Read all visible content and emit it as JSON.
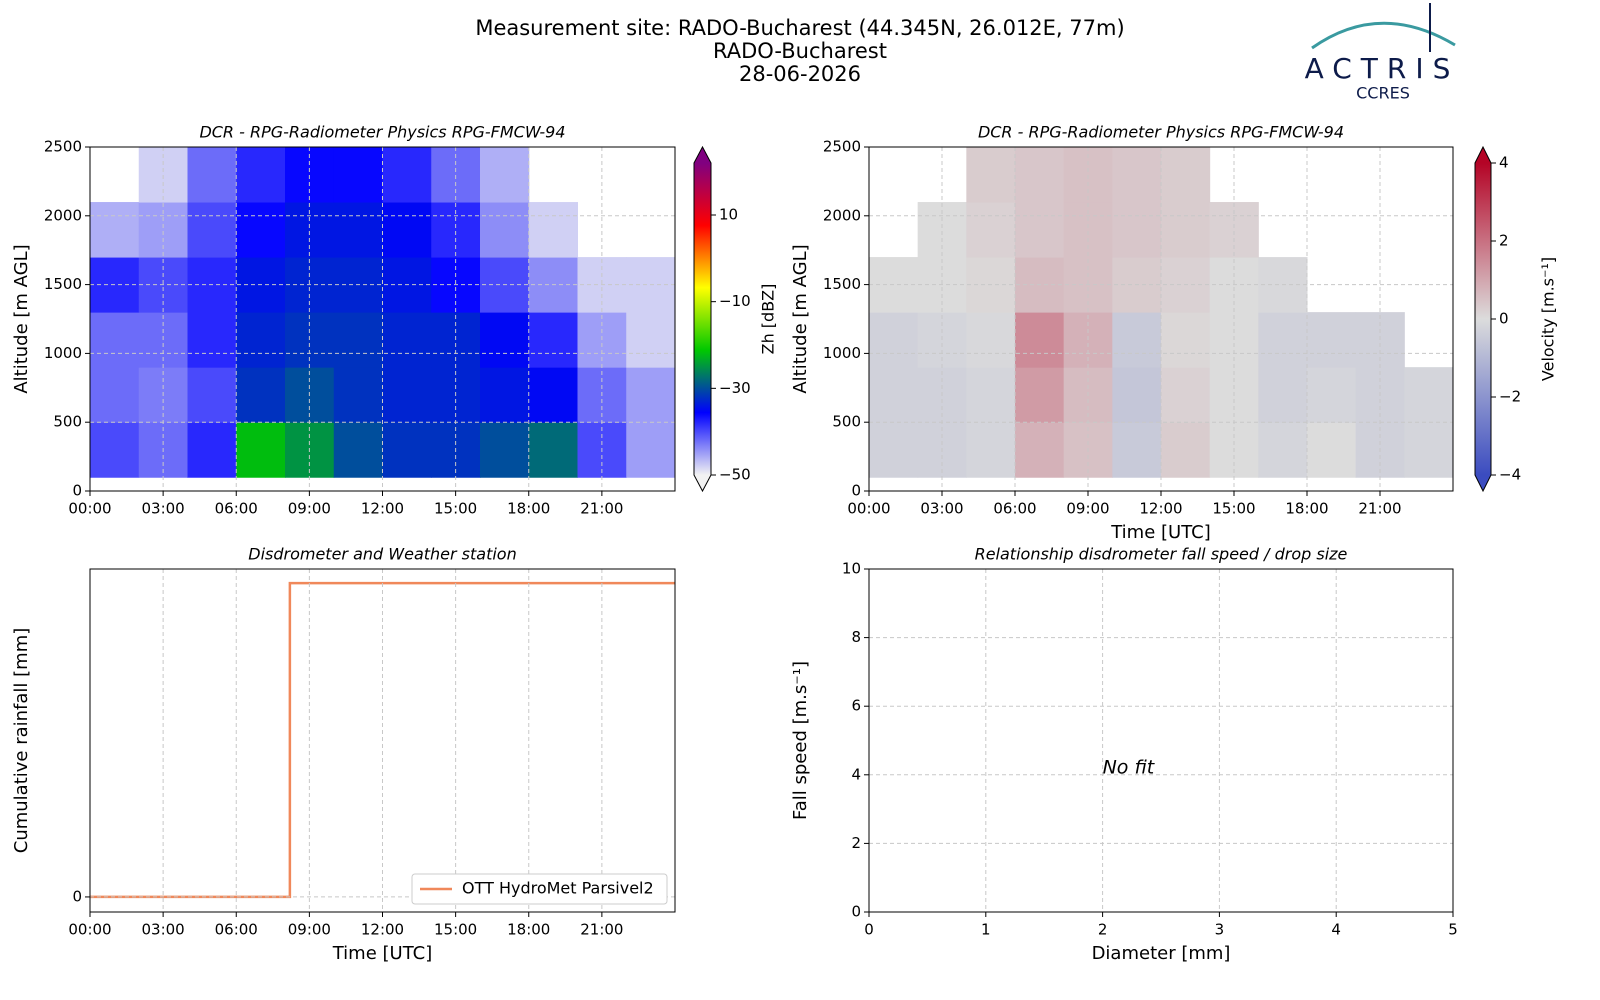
{
  "header": {
    "title_lines": [
      "Measurement site: RADO-Bucharest (44.345N, 26.012E, 77m)",
      "RADO-Bucharest",
      "28-06-2026"
    ],
    "logo": "ACTRIS",
    "logo_sub": "CCRES"
  },
  "chart_data": [
    {
      "type": "heatmap",
      "title": "DCR - RPG-Radiometer Physics RPG-FMCW-94",
      "ylabel": "Altitude [m AGL]",
      "x_edges": [
        0,
        2,
        4,
        6,
        8,
        10,
        12,
        14,
        16,
        18,
        20,
        22,
        24
      ],
      "y_edges": [
        100,
        500,
        900,
        1300,
        1700,
        2100,
        2500
      ],
      "values": [
        [
          -40,
          -42,
          -38,
          -22,
          -25,
          -30,
          -32,
          -32,
          -30,
          -28,
          -40,
          -45
        ],
        [
          -42,
          -43,
          -40,
          -32,
          -30,
          -32,
          -33,
          -33,
          -34,
          -35,
          -42,
          -45
        ],
        [
          -42,
          -42,
          -38,
          -33,
          -32,
          -32,
          -33,
          -33,
          -35,
          -38,
          -45,
          -48
        ],
        [
          -38,
          -40,
          -38,
          -34,
          -33,
          -33,
          -34,
          -36,
          -40,
          -44,
          -48,
          -48
        ],
        [
          -46,
          -45,
          -40,
          -36,
          -34,
          -34,
          -35,
          -38,
          -44,
          -48,
          null,
          null
        ],
        [
          null,
          -48,
          -42,
          -38,
          -36,
          -36,
          -38,
          -42,
          -46,
          null,
          null,
          null
        ]
      ],
      "xlim": [
        0,
        24
      ],
      "ylim": [
        0,
        2500
      ],
      "xticks": [
        {
          "value": 0,
          "label": "00:00"
        },
        {
          "value": 3,
          "label": "03:00"
        },
        {
          "value": 6,
          "label": "06:00"
        },
        {
          "value": 9,
          "label": "09:00"
        },
        {
          "value": 12,
          "label": "12:00"
        },
        {
          "value": 15,
          "label": "15:00"
        },
        {
          "value": 18,
          "label": "18:00"
        },
        {
          "value": 21,
          "label": "21:00"
        }
      ],
      "yticks": [
        0,
        500,
        1000,
        1500,
        2000,
        2500
      ],
      "grid": true,
      "clim": [
        -50,
        22
      ],
      "cticks": [
        {
          "value": -50,
          "label": "−50"
        },
        {
          "value": -30,
          "label": "−30"
        },
        {
          "value": -10,
          "label": "−10"
        },
        10
      ],
      "clabel": "Zh [dBZ]",
      "colors": [
        "#f2f2f2",
        "#0000ff",
        "#00c800",
        "#ffff00",
        "#ff0000",
        "#800080"
      ],
      "extend": "both"
    },
    {
      "type": "heatmap",
      "title": "DCR - RPG-Radiometer Physics RPG-FMCW-94",
      "ylabel": "Altitude [m AGL]",
      "xlabel": "Time [UTC]",
      "x_edges": [
        0,
        2,
        4,
        6,
        8,
        10,
        12,
        14,
        16,
        18,
        20,
        22,
        24
      ],
      "y_edges": [
        100,
        500,
        900,
        1300,
        1700,
        2100,
        2500
      ],
      "values": [
        [
          -0.3,
          -0.3,
          -0.2,
          0.8,
          0.5,
          -0.5,
          0.3,
          0,
          -0.2,
          0,
          -0.3,
          -0.2
        ],
        [
          -0.3,
          -0.3,
          -0.2,
          1.2,
          0.6,
          -0.6,
          0.2,
          0,
          -0.3,
          -0.2,
          -0.3,
          -0.2
        ],
        [
          -0.3,
          -0.2,
          -0.1,
          1.5,
          0.8,
          -0.5,
          0.1,
          0,
          -0.3,
          -0.3,
          -0.3,
          null
        ],
        [
          0,
          0,
          0.1,
          0.6,
          0.5,
          0.3,
          0.2,
          0,
          -0.1,
          null,
          null,
          null
        ],
        [
          null,
          0,
          0.2,
          0.4,
          0.5,
          0.4,
          0.3,
          0.2,
          null,
          null,
          null,
          null
        ],
        [
          null,
          null,
          0.3,
          0.4,
          0.5,
          0.4,
          0.3,
          null,
          null,
          null,
          null,
          null
        ]
      ],
      "xlim": [
        0,
        24
      ],
      "ylim": [
        0,
        2500
      ],
      "xticks": [
        {
          "value": 0,
          "label": "00:00"
        },
        {
          "value": 3,
          "label": "03:00"
        },
        {
          "value": 6,
          "label": "06:00"
        },
        {
          "value": 9,
          "label": "09:00"
        },
        {
          "value": 12,
          "label": "12:00"
        },
        {
          "value": 15,
          "label": "15:00"
        },
        {
          "value": 18,
          "label": "18:00"
        },
        {
          "value": 21,
          "label": "21:00"
        }
      ],
      "yticks": [
        0,
        500,
        1000,
        1500,
        2000,
        2500
      ],
      "grid": true,
      "clim": [
        -4,
        4
      ],
      "cticks": [
        {
          "value": -4,
          "label": "−4"
        },
        {
          "value": -2,
          "label": "−2"
        },
        0,
        2,
        4
      ],
      "clabel": "Velocity [m.s⁻¹]",
      "colors": [
        "#3b4cc0",
        "#dcdcdc",
        "#b40426"
      ],
      "extend": "both"
    },
    {
      "type": "step",
      "title": "Disdrometer and Weather station",
      "ylabel": "Cumulative rainfall [mm]",
      "xlabel": "Time [UTC]",
      "x": [
        0,
        8.2,
        24
      ],
      "series": [
        {
          "name": "OTT HydroMet Parsivel2",
          "color": "#f0885a",
          "values": [
            0,
            1,
            1
          ]
        }
      ],
      "xlim": [
        0,
        24
      ],
      "ylim": [
        -0.048,
        1.045
      ],
      "xticks": [
        {
          "value": 0,
          "label": "00:00"
        },
        {
          "value": 3,
          "label": "03:00"
        },
        {
          "value": 6,
          "label": "06:00"
        },
        {
          "value": 9,
          "label": "09:00"
        },
        {
          "value": 12,
          "label": "12:00"
        },
        {
          "value": 15,
          "label": "15:00"
        },
        {
          "value": 18,
          "label": "18:00"
        },
        {
          "value": 21,
          "label": "21:00"
        }
      ],
      "yticks": [
        0
      ],
      "grid": true,
      "legend": "lower right"
    },
    {
      "type": "scatter",
      "title": "Relationship disdrometer fall speed / drop size",
      "ylabel": "Fall speed [m.s⁻¹]",
      "xlabel": "Diameter [mm]",
      "xlim": [
        0,
        5
      ],
      "ylim": [
        0,
        10
      ],
      "xticks": [
        0,
        1,
        2,
        3,
        4,
        5
      ],
      "yticks": [
        0,
        2,
        4,
        6,
        8,
        10
      ],
      "grid": true,
      "annotation": "No fit"
    }
  ]
}
